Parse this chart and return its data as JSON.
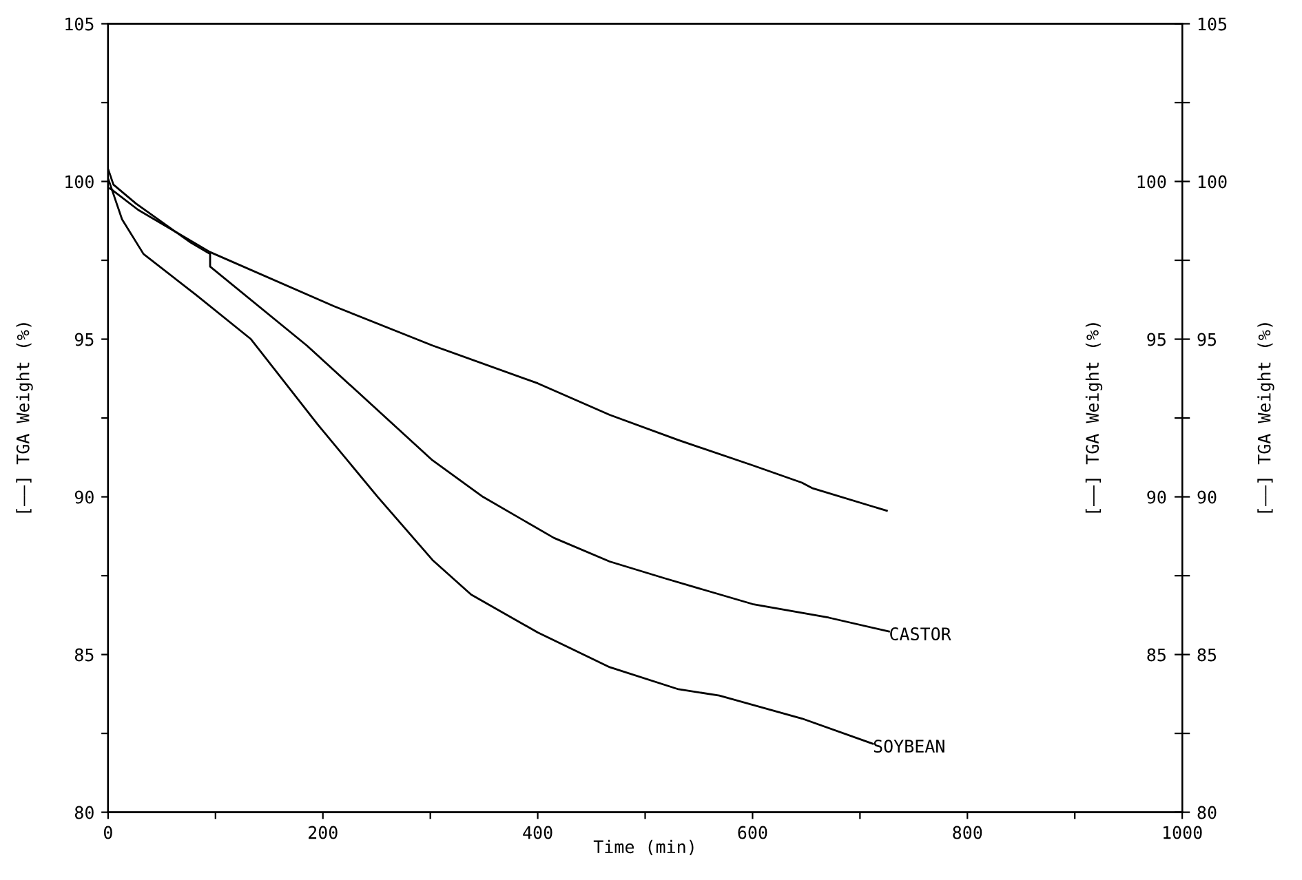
{
  "chart_data": {
    "type": "line",
    "xlabel": "Time (min)",
    "ylabel": "[——] TGA Weight (%)",
    "y2label": "[——] TGA Weight (%)",
    "y3label": "[——] TGA Weight (%)",
    "xlim": [
      0,
      1000
    ],
    "xticks": [
      0,
      {
        "value": 100,
        "label": null
      },
      200,
      {
        "value": 300,
        "label": null
      },
      400,
      {
        "value": 500,
        "label": null
      },
      600,
      {
        "value": 700,
        "label": null
      },
      800,
      {
        "value": 900,
        "label": null
      },
      1000
    ],
    "ylim": [
      80,
      105
    ],
    "yticks": [
      80,
      {
        "value": 82.5,
        "label": null
      },
      85,
      {
        "value": 87.5,
        "label": null
      },
      90,
      {
        "value": 92.5,
        "label": null
      },
      95,
      {
        "value": 97.5,
        "label": null
      },
      100,
      {
        "value": 102.5,
        "label": null
      },
      105
    ],
    "y2lim": [
      80,
      105
    ],
    "y2ticks": [
      80,
      {
        "value": 82.5,
        "label": null
      },
      85,
      {
        "value": 87.5,
        "label": null
      },
      90,
      {
        "value": 92.5,
        "label": null
      },
      95,
      {
        "value": 97.5,
        "label": null
      },
      100,
      {
        "value": 102.5,
        "label": null
      },
      105
    ],
    "y3lim": [
      80,
      105
    ],
    "y3ticks": [
      85,
      90,
      95,
      100
    ],
    "grid": false,
    "legend": false,
    "marker": "none",
    "line_style": "solid",
    "series": [
      {
        "color": "#000000",
        "x": [
          0,
          3,
          28,
          95,
          210,
          302,
          400,
          467,
          531,
          600,
          646,
          656,
          725
        ],
        "values": [
          99.8,
          99.75,
          99.1,
          97.76,
          96.05,
          94.8,
          93.6,
          92.6,
          91.8,
          91.0,
          90.45,
          90.27,
          89.56
        ]
      },
      {
        "name": "CASTOR",
        "color": "#000000",
        "x": [
          0,
          5,
          26,
          77,
          95,
          95,
          185,
          302,
          349,
          415,
          467,
          518,
          600,
          671,
          727
        ],
        "values": [
          100.4,
          99.9,
          99.3,
          98.06,
          97.7,
          97.3,
          94.8,
          91.16,
          90.0,
          88.7,
          87.95,
          87.42,
          86.6,
          86.17,
          85.73
        ]
      },
      {
        "name": "SOYBEAN",
        "color": "#000000",
        "x": [
          0,
          5,
          13,
          33,
          82,
          133,
          195,
          251,
          302,
          338,
          400,
          467,
          531,
          569,
          646,
          712
        ],
        "values": [
          100.1,
          99.6,
          98.8,
          97.7,
          96.4,
          95.0,
          92.3,
          90.0,
          88.0,
          86.9,
          85.7,
          84.6,
          83.9,
          83.7,
          82.97,
          82.17
        ]
      }
    ]
  }
}
